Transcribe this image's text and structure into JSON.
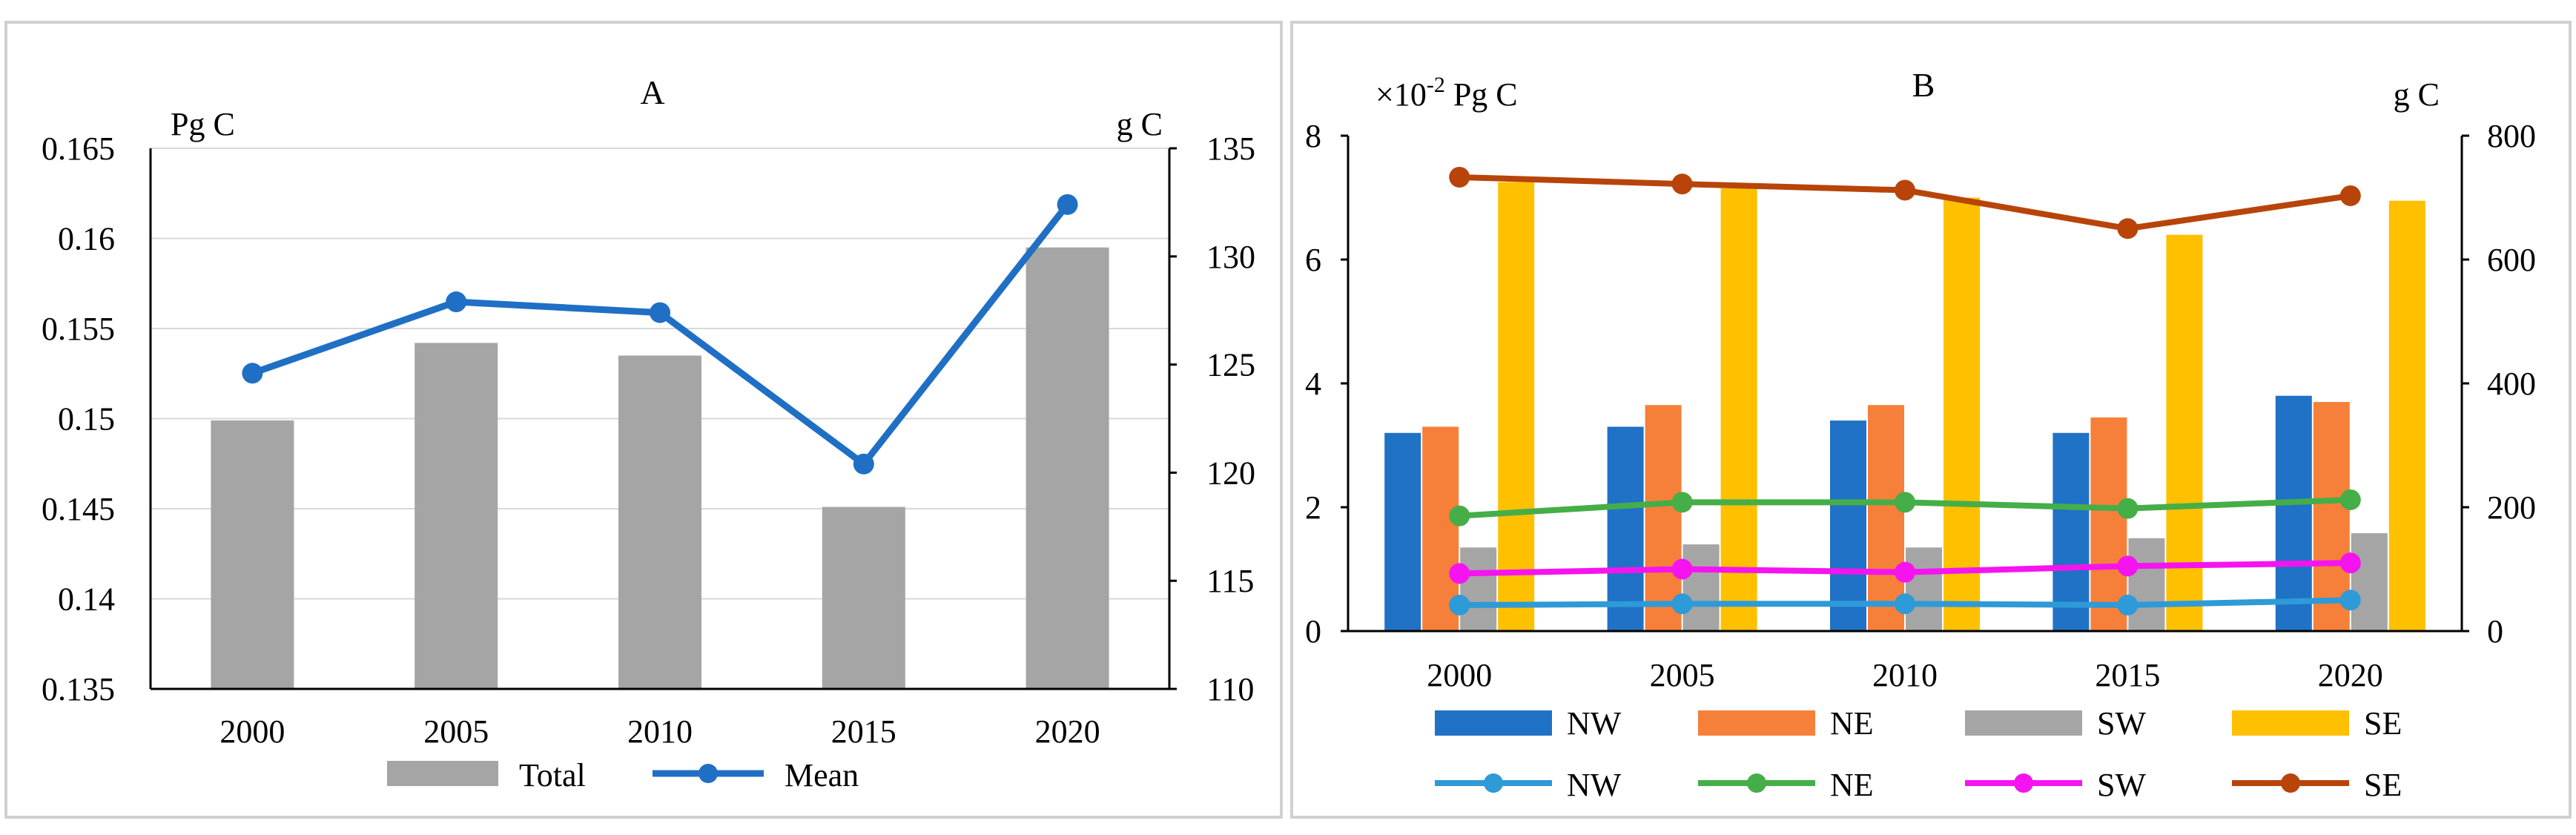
{
  "chart_data": [
    {
      "type": "bar+line",
      "title": "A",
      "categories": [
        "2000",
        "2005",
        "2010",
        "2015",
        "2020"
      ],
      "left_axis": {
        "unit": "Pg C",
        "min": 0.135,
        "max": 0.165,
        "step": 0.005,
        "ticks": [
          "0.135",
          "0.14",
          "0.145",
          "0.15",
          "0.155",
          "0.16",
          "0.165"
        ]
      },
      "right_axis": {
        "unit": "g C",
        "min": 110,
        "max": 135,
        "step": 5,
        "ticks": [
          "110",
          "115",
          "120",
          "125",
          "130",
          "135"
        ]
      },
      "bar_series": {
        "name": "Total",
        "color": "#a5a5a5",
        "values": [
          0.1499,
          0.1542,
          0.1535,
          0.1451,
          0.1595
        ]
      },
      "line_series": {
        "name": "Mean",
        "color": "#1f6fc5",
        "values": [
          124.6,
          127.9,
          127.4,
          120.4,
          132.4
        ]
      },
      "grid": true,
      "legend": [
        "Total",
        "Mean"
      ]
    },
    {
      "type": "bar+line",
      "title": "B",
      "categories": [
        "2000",
        "2005",
        "2010",
        "2015",
        "2020"
      ],
      "left_axis": {
        "unit_prefix": "×10",
        "unit_exp": "-2",
        "unit_suffix": " Pg C",
        "min": 0,
        "max": 8,
        "step": 2,
        "ticks": [
          "0",
          "2",
          "4",
          "6",
          "8"
        ]
      },
      "right_axis": {
        "unit": "g C",
        "min": 0,
        "max": 800,
        "step": 200,
        "ticks": [
          "0",
          "200",
          "400",
          "600",
          "800"
        ]
      },
      "bar_series": [
        {
          "name": "NW",
          "color": "#1f72c6",
          "values": [
            3.2,
            3.3,
            3.4,
            3.2,
            3.8
          ]
        },
        {
          "name": "NE",
          "color": "#f6803a",
          "values": [
            3.3,
            3.65,
            3.65,
            3.45,
            3.7
          ]
        },
        {
          "name": "SW",
          "color": "#a5a5a5",
          "values": [
            1.35,
            1.4,
            1.35,
            1.5,
            1.58
          ]
        },
        {
          "name": "SE",
          "color": "#ffc000",
          "values": [
            7.25,
            7.15,
            7.0,
            6.4,
            6.95
          ]
        }
      ],
      "line_series": [
        {
          "name": "NW",
          "color": "#2e9ad8",
          "values": [
            42,
            44,
            44,
            42,
            50
          ]
        },
        {
          "name": "NE",
          "color": "#45ae48",
          "values": [
            186,
            208,
            208,
            198,
            212
          ]
        },
        {
          "name": "SW",
          "color": "#f514f0",
          "values": [
            93,
            100,
            95,
            105,
            110
          ]
        },
        {
          "name": "SE",
          "color": "#b8440a",
          "values": [
            733,
            722,
            712,
            650,
            703
          ]
        }
      ],
      "grid": false,
      "legend_bars": [
        "NW",
        "NE",
        "SW",
        "SE"
      ],
      "legend_lines": [
        "NW",
        "NE",
        "SW",
        "SE"
      ]
    }
  ]
}
